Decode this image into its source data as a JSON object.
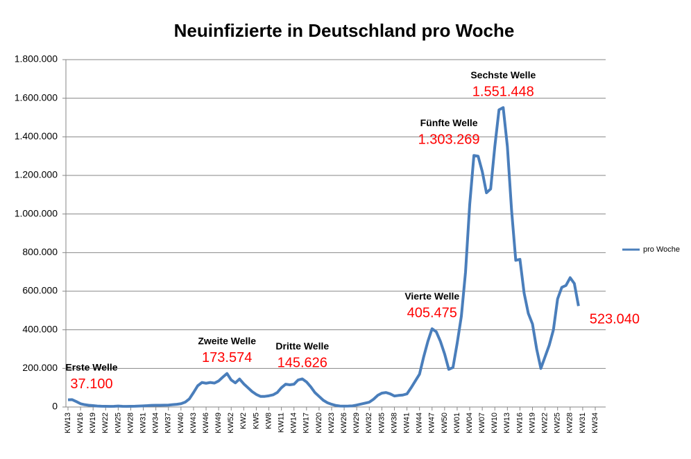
{
  "chart_data": {
    "type": "line",
    "title": "Neuinfizierte in Deutschland pro Woche",
    "categories": [
      "KW13",
      null,
      null,
      "KW16",
      null,
      null,
      "KW19",
      null,
      null,
      "KW22",
      null,
      null,
      "KW25",
      null,
      null,
      "KW28",
      null,
      null,
      "KW31",
      null,
      null,
      "KW34",
      null,
      null,
      "KW37",
      null,
      null,
      "KW40",
      null,
      null,
      "KW43",
      null,
      null,
      "KW46",
      null,
      null,
      "KW49",
      null,
      null,
      "KW52",
      null,
      null,
      "KW2",
      null,
      null,
      "KW5",
      null,
      null,
      "KW8",
      null,
      null,
      "KW11",
      null,
      null,
      "KW14",
      null,
      null,
      "KW17",
      null,
      null,
      "KW20",
      null,
      null,
      "KW23",
      null,
      null,
      "KW26",
      null,
      null,
      "KW29",
      null,
      null,
      "KW32",
      null,
      null,
      "KW35",
      null,
      null,
      "KW38",
      null,
      null,
      "KW41",
      null,
      null,
      "KW44",
      null,
      null,
      "KW47",
      null,
      null,
      "KW50",
      null,
      null,
      "KW01",
      null,
      null,
      "KW04",
      null,
      null,
      "KW07",
      null,
      null,
      "KW10",
      null,
      null,
      "KW13",
      null,
      null,
      "KW16",
      null,
      null,
      "KW19",
      null,
      null,
      "KW22",
      null,
      null,
      "KW25",
      null,
      null,
      "KW28",
      null,
      null,
      "KW31",
      null,
      null,
      "KW34"
    ],
    "series": [
      {
        "name": "pro Woche",
        "color": "#4a7ebb",
        "values": [
          37100,
          38000,
          28000,
          17000,
          12000,
          9000,
          7000,
          5000,
          4000,
          3500,
          3000,
          3500,
          5000,
          3500,
          3000,
          3500,
          4000,
          5000,
          6000,
          7000,
          8500,
          9000,
          9000,
          9500,
          10000,
          12000,
          14000,
          17000,
          25000,
          42000,
          75000,
          110000,
          127000,
          123000,
          127000,
          124000,
          135000,
          155000,
          173574,
          140000,
          125000,
          145000,
          120000,
          100000,
          80000,
          65000,
          55000,
          55000,
          58000,
          63000,
          75000,
          100000,
          118000,
          115000,
          118000,
          140000,
          145626,
          130000,
          105000,
          75000,
          55000,
          35000,
          22000,
          14000,
          8000,
          5000,
          4500,
          5000,
          6000,
          10000,
          15000,
          20000,
          25000,
          40000,
          60000,
          72000,
          75000,
          68000,
          57000,
          60000,
          62000,
          68000,
          100000,
          135000,
          170000,
          260000,
          340000,
          405475,
          390000,
          340000,
          275000,
          195000,
          205000,
          330000,
          470000,
          700000,
          1050000,
          1303269,
          1300000,
          1220000,
          1110000,
          1130000,
          1350000,
          1540000,
          1551448,
          1350000,
          1020000,
          760000,
          765000,
          590000,
          485000,
          430000,
          300000,
          200000,
          260000,
          320000,
          400000,
          560000,
          620000,
          630000,
          670000,
          640000,
          523040,
          null,
          null,
          null,
          null
        ],
        "value_labels": [
          "37.100",
          null,
          null,
          null,
          null,
          null,
          null,
          null,
          null,
          null,
          null,
          null,
          null,
          null,
          null,
          null,
          null,
          null,
          null,
          null,
          null,
          null,
          null,
          null,
          null,
          null,
          null,
          null,
          null,
          null,
          null,
          null,
          null,
          null,
          null,
          null,
          null,
          null,
          "173.574",
          null,
          null,
          null,
          null,
          null,
          null,
          null,
          null,
          null,
          null,
          null,
          null,
          null,
          null,
          null,
          null,
          null,
          "145.626",
          null,
          null,
          null,
          null,
          null,
          null,
          null,
          null,
          null,
          null,
          null,
          null,
          null,
          null,
          null,
          null,
          null,
          null,
          null,
          null,
          null,
          null,
          null,
          null,
          null,
          null,
          null,
          null,
          null,
          null,
          "405.475",
          null,
          null,
          null,
          null,
          null,
          null,
          null,
          null,
          null,
          "1.303.269",
          null,
          null,
          null,
          null,
          null,
          null,
          "1.551.448",
          null,
          null,
          null,
          null,
          null,
          null,
          null,
          null,
          null,
          null,
          null,
          null,
          null,
          null,
          null,
          null,
          null,
          "523.040",
          null,
          null,
          null,
          null
        ],
        "annotations": [
          "Erste Welle",
          null,
          null,
          null,
          null,
          null,
          null,
          null,
          null,
          null,
          null,
          null,
          null,
          null,
          null,
          null,
          null,
          null,
          null,
          null,
          null,
          null,
          null,
          null,
          null,
          null,
          null,
          null,
          null,
          null,
          null,
          null,
          null,
          null,
          null,
          null,
          null,
          null,
          "Zweite Welle",
          null,
          null,
          null,
          null,
          null,
          null,
          null,
          null,
          null,
          null,
          null,
          null,
          null,
          null,
          null,
          null,
          null,
          "Dritte Welle",
          null,
          null,
          null,
          null,
          null,
          null,
          null,
          null,
          null,
          null,
          null,
          null,
          null,
          null,
          null,
          null,
          null,
          null,
          null,
          null,
          null,
          null,
          null,
          null,
          null,
          null,
          null,
          null,
          null,
          null,
          "Vierte Welle",
          null,
          null,
          null,
          null,
          null,
          null,
          null,
          null,
          null,
          "Fünfte Welle",
          null,
          null,
          null,
          null,
          null,
          null,
          "Sechste Welle",
          null,
          null,
          null,
          null,
          null,
          null,
          null,
          null,
          null,
          null,
          null,
          null,
          null,
          null,
          null,
          null,
          null,
          null,
          null,
          null,
          null,
          null,
          null
        ]
      }
    ],
    "ylim": [
      0,
      1800000
    ],
    "yticks": [
      0,
      {
        "value": 200000,
        "label": "200.000"
      },
      {
        "value": 400000,
        "label": "400.000"
      },
      {
        "value": 600000,
        "label": "600.000"
      },
      {
        "value": 800000,
        "label": "800.000"
      },
      {
        "value": 1000000,
        "label": "1.000.000"
      },
      {
        "value": 1200000,
        "label": "1.200.000"
      },
      {
        "value": 1400000,
        "label": "1.400.000"
      },
      {
        "value": 1600000,
        "label": "1.600.000"
      },
      {
        "value": 1800000,
        "label": "1.800.000"
      }
    ],
    "grid": true,
    "legend": "right"
  }
}
